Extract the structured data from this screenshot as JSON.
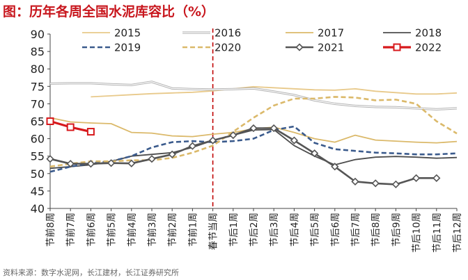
{
  "header": {
    "title": "图：历年各周全国水泥库容比（%）"
  },
  "footer": {
    "source": "资料来源：数字水泥网，长江建材，长江证券研究所"
  },
  "chart_data": {
    "type": "line",
    "title": "图：历年各周全国水泥库容比（%）",
    "xlabel": "",
    "ylabel": "",
    "ylim": [
      40,
      90
    ],
    "yticks": [
      40,
      45,
      50,
      55,
      60,
      65,
      70,
      75,
      80,
      85,
      90
    ],
    "categories": [
      "节前8周",
      "节前7周",
      "节前6周",
      "节前5周",
      "节前4周",
      "节前3周",
      "节前2周",
      "节前1周",
      "春节当周",
      "节后1周",
      "节后2周",
      "节后3周",
      "节后4周",
      "节后5周",
      "节后6周",
      "节后7周",
      "节后8周",
      "节后9周",
      "节后10周",
      "节后11周",
      "节后12周"
    ],
    "reference_line_category": "春节当周",
    "legend_position": "top",
    "series": [
      {
        "name": "2015",
        "color": "#e8c98a",
        "style": "solid",
        "marker": "none",
        "values": [
          null,
          null,
          72.0,
          72.3,
          72.6,
          72.9,
          73.1,
          73.3,
          73.7,
          74.3,
          74.9,
          74.6,
          74.3,
          74.0,
          73.9,
          74.3,
          73.6,
          73.2,
          72.8,
          72.8,
          73.1
        ]
      },
      {
        "name": "2016",
        "color": "#b3b3b3",
        "style": "double",
        "marker": "none",
        "values": [
          75.8,
          75.9,
          75.9,
          75.6,
          75.4,
          76.3,
          74.4,
          74.2,
          74.1,
          74.2,
          74.4,
          73.5,
          72.5,
          71.0,
          70.0,
          69.4,
          69.1,
          69.0,
          68.7,
          68.4,
          68.7
        ]
      },
      {
        "name": "2017",
        "color": "#dbb96a",
        "style": "solid",
        "marker": "none",
        "values": [
          66.0,
          64.8,
          64.5,
          64.3,
          61.8,
          61.6,
          60.8,
          60.6,
          61.3,
          61.8,
          62.8,
          63.3,
          61.8,
          60.0,
          59.0,
          61.0,
          59.6,
          59.3,
          59.0,
          58.8,
          59.2
        ]
      },
      {
        "name": "2018",
        "color": "#4d4d4d",
        "style": "solid",
        "marker": "none",
        "values": [
          51.5,
          52.0,
          52.5,
          53.5,
          55.0,
          55.5,
          56.0,
          57.5,
          59.5,
          61.0,
          62.5,
          62.6,
          58.0,
          55.0,
          52.5,
          54.0,
          54.7,
          54.9,
          54.7,
          54.4,
          54.6
        ]
      },
      {
        "name": "2019",
        "color": "#3a5a8c",
        "style": "dash",
        "marker": "none",
        "values": [
          50.5,
          52.0,
          53.0,
          53.5,
          55.0,
          57.5,
          59.0,
          59.3,
          59.0,
          59.3,
          60.0,
          62.5,
          63.5,
          58.8,
          57.0,
          56.5,
          56.0,
          55.8,
          55.5,
          55.5,
          55.8
        ]
      },
      {
        "name": "2020",
        "color": "#dbb96a",
        "style": "dash",
        "marker": "none",
        "values": [
          52.0,
          52.8,
          53.5,
          53.5,
          53.8,
          53.8,
          54.5,
          56.0,
          58.0,
          62.0,
          66.0,
          69.5,
          71.5,
          71.5,
          72.0,
          71.8,
          71.0,
          71.2,
          70.0,
          65.0,
          61.5
        ]
      },
      {
        "name": "2021",
        "color": "#555555",
        "style": "solid",
        "marker": "diamond",
        "values": [
          54.2,
          52.8,
          52.8,
          53.0,
          52.9,
          54.2,
          55.5,
          57.9,
          59.5,
          61.0,
          63.0,
          63.0,
          59.5,
          55.8,
          52.0,
          47.7,
          47.2,
          46.9,
          48.7,
          48.7,
          null
        ]
      },
      {
        "name": "2022",
        "color": "#d7191c",
        "style": "solid",
        "marker": "square",
        "values": [
          65.0,
          63.3,
          62.0,
          null,
          null,
          null,
          null,
          null,
          null,
          null,
          null,
          null,
          null,
          null,
          null,
          null,
          null,
          null,
          null,
          null,
          null
        ]
      }
    ]
  }
}
